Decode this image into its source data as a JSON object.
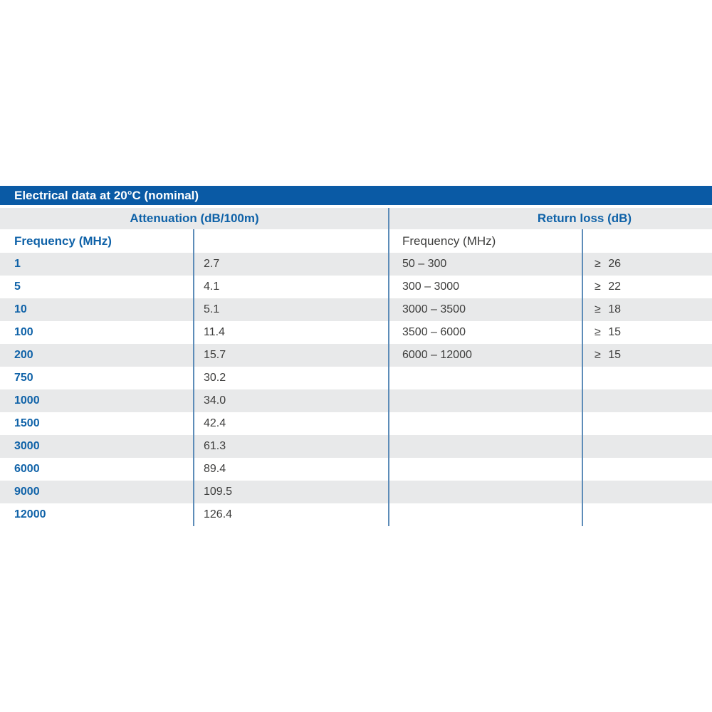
{
  "table": {
    "title": "Electrical data at 20°C (nominal)",
    "sections": [
      {
        "header": "Attenuation (dB/100m)",
        "col_header": "Frequency (MHz)"
      },
      {
        "header": "Return loss (dB)",
        "col_header": "Frequency (MHz)"
      }
    ],
    "rows": [
      {
        "freq": "1",
        "atten": "2.7",
        "range": "50 – 300",
        "rl": "≥ 26"
      },
      {
        "freq": "5",
        "atten": "4.1",
        "range": "300 – 3000",
        "rl": "≥ 22"
      },
      {
        "freq": "10",
        "atten": "5.1",
        "range": "3000 – 3500",
        "rl": "≥ 18"
      },
      {
        "freq": "100",
        "atten": "11.4",
        "range": "3500 – 6000",
        "rl": "≥ 15"
      },
      {
        "freq": "200",
        "atten": "15.7",
        "range": "6000 – 12000",
        "rl": "≥ 15"
      },
      {
        "freq": "750",
        "atten": "30.2",
        "range": "",
        "rl": ""
      },
      {
        "freq": "1000",
        "atten": "34.0",
        "range": "",
        "rl": ""
      },
      {
        "freq": "1500",
        "atten": "42.4",
        "range": "",
        "rl": ""
      },
      {
        "freq": "3000",
        "atten": "61.3",
        "range": "",
        "rl": ""
      },
      {
        "freq": "6000",
        "atten": "89.4",
        "range": "",
        "rl": ""
      },
      {
        "freq": "9000",
        "atten": "109.5",
        "range": "",
        "rl": ""
      },
      {
        "freq": "12000",
        "atten": "126.4",
        "range": "",
        "rl": ""
      }
    ],
    "colors": {
      "title_bar": "#0a5aa5",
      "header_text": "#0f62a8",
      "stripe": "#e8e9ea",
      "divider": "#5d8cb8",
      "body_text": "#3c3c3b"
    }
  }
}
